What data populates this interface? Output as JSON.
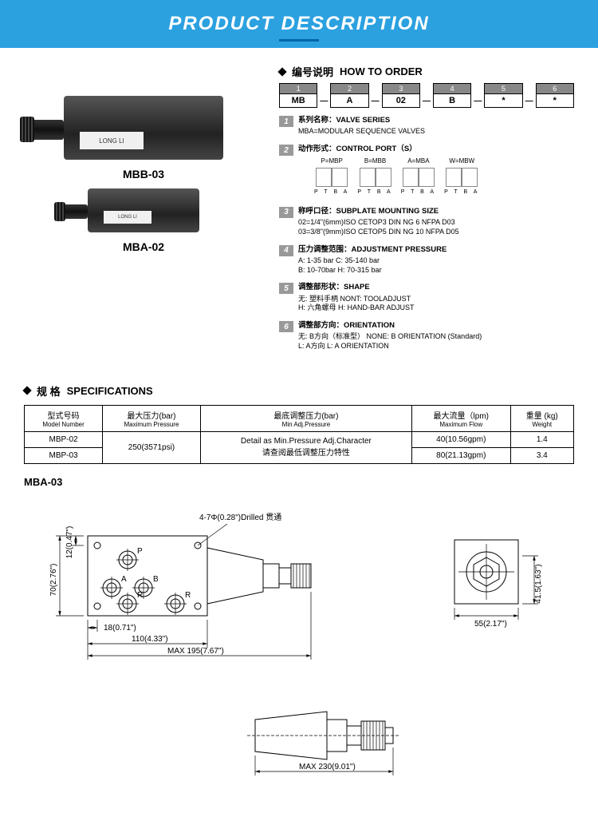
{
  "header": {
    "title": "PRODUCT DESCRIPTION"
  },
  "products": {
    "img1_label": "LONG LI",
    "img1_caption": "MBB-03",
    "img2_label": "LONG LI",
    "img2_caption": "MBA-02"
  },
  "howto": {
    "title_cn": "编号说明",
    "title_en": "HOW TO ORDER",
    "boxes": [
      {
        "num": "1",
        "val": "MB"
      },
      {
        "num": "2",
        "val": "A"
      },
      {
        "num": "3",
        "val": "02"
      },
      {
        "num": "4",
        "val": "B"
      },
      {
        "num": "5",
        "val": "*"
      },
      {
        "num": "6",
        "val": "*"
      }
    ],
    "items": [
      {
        "num": "1",
        "title": "系列名称：VALVE SERIES",
        "body": "MBA=MODULAR SEQUENCE VALVES"
      },
      {
        "num": "2",
        "title": "动作形式：CONTROL PORT（S）",
        "ports": [
          {
            "top": "P=MBP",
            "bot": "P T B A"
          },
          {
            "top": "B=MBB",
            "bot": "P T B A"
          },
          {
            "top": "A=MBA",
            "bot": "P T B A"
          },
          {
            "top": "W=MBW",
            "bot": "P T B A"
          }
        ]
      },
      {
        "num": "3",
        "title": "称呼口径：SUBPLATE MOUNTING SIZE",
        "body": "02=1/4\"(6mm)ISO CETOP3 DIN NG 6 NFPA D03\n03=3/8\"(9mm)ISO CETOP5 DIN NG 10 NFPA D05"
      },
      {
        "num": "4",
        "title": "压力调整范围：ADJUSTMENT PRESSURE",
        "body": "A: 1-35 bar      C: 35-140 bar\nB: 10-70bar    H: 70-315 bar"
      },
      {
        "num": "5",
        "title": "调整部形状：SHAPE",
        "body": "无: 塑料手柄  NONT: TOOLADJUST\nH: 六角螺母  H: HAND-BAR ADJUST"
      },
      {
        "num": "6",
        "title": "调整部方向：ORIENTATION",
        "body": "无: B方向（标准型）  NONE: B ORIENTATION (Standard)\nL: A方向 L: A ORIENTATION"
      }
    ]
  },
  "specs": {
    "title_cn": "规 格",
    "title_en": "SPECIFICATIONS",
    "headers": [
      {
        "cn": "型式号码",
        "en": "Model Number"
      },
      {
        "cn": "最大压力(bar)",
        "en": "Maximum Pressure"
      },
      {
        "cn": "最底调整压力(bar)",
        "en": "Min Adj.Pressure"
      },
      {
        "cn": "最大流量（lpm)",
        "en": "Maximum Flow"
      },
      {
        "cn": "重量 (kg)",
        "en": "Weight"
      }
    ],
    "rows": [
      {
        "model": "MBP-02",
        "maxp": "250(3571psi)",
        "minp": "Detail as Min.Pressure Adj.Character\n请查阅最低调整压力特性",
        "flow": "40(10.56gpm)",
        "wt": "1.4"
      },
      {
        "model": "MBP-03",
        "flow": "80(21.13gpm)",
        "wt": "3.4"
      }
    ]
  },
  "drawing": {
    "label": "MBA-03",
    "annotations": {
      "drill": "4-7Φ(0.28\")Drilled 贯通",
      "h1": "70(2.76\")",
      "h2": "12(0.47\")",
      "w1": "18(0.71\")",
      "w2": "110(4.33\")",
      "w3": "MAX 195(7.67\")",
      "side_h": "41.5(1.63\")",
      "side_w": "55(2.17\")",
      "bottom_w": "MAX 230(9.01\")",
      "ports": [
        "P",
        "A",
        "B",
        "R",
        "R"
      ]
    }
  },
  "colors": {
    "banner": "#2ba1e0",
    "banner_underline": "#0066aa",
    "numbox": "#999999"
  }
}
